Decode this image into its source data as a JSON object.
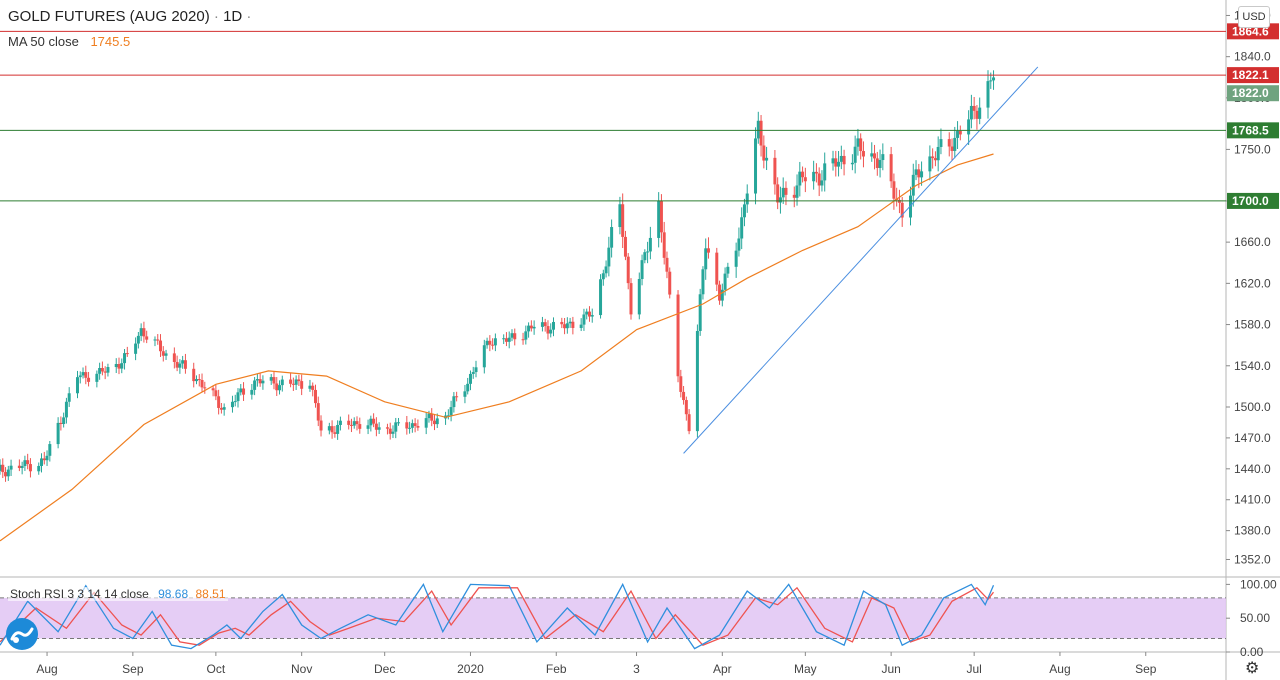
{
  "legend": {
    "symbol": "GOLD FUTURES (AUG 2020)",
    "interval": "1D",
    "ma_label": "MA 50 close",
    "ma_value": "1745.5"
  },
  "currency": "USD",
  "rsi_legend": {
    "label": "Stoch RSI 3 3 14 14 close",
    "k_value": "98.68",
    "d_value": "88.51"
  },
  "colors": {
    "up": "#26a69a",
    "down": "#ef5350",
    "ma": "#ef7e20",
    "trendline": "#4a8ee0",
    "resistance": "#d32f2f",
    "support": "#2e7d32",
    "k_line": "#2f8fdd",
    "d_line": "#ef5350",
    "rsi_band": "#e1c4f3",
    "current_price": "#6fa37f"
  },
  "chart_data": {
    "type": "candlestick",
    "title": "GOLD FUTURES (AUG 2020)",
    "interval": "1D",
    "ylim": [
      1335,
      1895
    ],
    "y_ticks": [
      "1880.0",
      "1840.0",
      "1800.0",
      "1750.0",
      "1700.0",
      "1660.0",
      "1620.0",
      "1580.0",
      "1540.0",
      "1500.0",
      "1470.0",
      "1440.0",
      "1410.0",
      "1380.0",
      "1352.0"
    ],
    "x_ticks": [
      {
        "label": "Aug",
        "date": "2019-08-01"
      },
      {
        "label": "Sep",
        "date": "2019-09-01"
      },
      {
        "label": "Oct",
        "date": "2019-10-01"
      },
      {
        "label": "Nov",
        "date": "2019-11-01"
      },
      {
        "label": "Dec",
        "date": "2019-12-01"
      },
      {
        "label": "2020",
        "date": "2020-01-01"
      },
      {
        "label": "Feb",
        "date": "2020-02-01"
      },
      {
        "label": "3",
        "date": "2020-03-01"
      },
      {
        "label": "Apr",
        "date": "2020-04-01"
      },
      {
        "label": "May",
        "date": "2020-05-01"
      },
      {
        "label": "Jun",
        "date": "2020-06-01"
      },
      {
        "label": "Jul",
        "date": "2020-07-01"
      },
      {
        "label": "Aug",
        "date": "2020-08-01"
      },
      {
        "label": "Sep",
        "date": "2020-09-01"
      }
    ],
    "price_path": [
      [
        "2019-07-15",
        1438
      ],
      [
        "2019-07-31",
        1447
      ],
      [
        "2019-08-12",
        1530
      ],
      [
        "2019-08-20",
        1532
      ],
      [
        "2019-08-30",
        1548
      ],
      [
        "2019-09-04",
        1575
      ],
      [
        "2019-09-12",
        1553
      ],
      [
        "2019-09-24",
        1528
      ],
      [
        "2019-10-01",
        1507
      ],
      [
        "2019-10-04",
        1498
      ],
      [
        "2019-10-15",
        1525
      ],
      [
        "2019-10-28",
        1522
      ],
      [
        "2019-11-04",
        1525
      ],
      [
        "2019-11-08",
        1476
      ],
      [
        "2019-11-13",
        1480
      ],
      [
        "2019-11-22",
        1485
      ],
      [
        "2019-12-02",
        1478
      ],
      [
        "2019-12-13",
        1484
      ],
      [
        "2019-12-23",
        1491
      ],
      [
        "2019-12-31",
        1525
      ],
      [
        "2020-01-08",
        1565
      ],
      [
        "2020-01-15",
        1565
      ],
      [
        "2020-01-24",
        1578
      ],
      [
        "2020-02-04",
        1578
      ],
      [
        "2020-02-14",
        1590
      ],
      [
        "2020-02-24",
        1695
      ],
      [
        "2020-02-28",
        1595
      ],
      [
        "2020-03-09",
        1698
      ],
      [
        "2020-03-16",
        1532
      ],
      [
        "2020-03-20",
        1480
      ],
      [
        "2020-03-26",
        1664
      ],
      [
        "2020-03-31",
        1605
      ],
      [
        "2020-04-08",
        1680
      ],
      [
        "2020-04-14",
        1770
      ],
      [
        "2020-04-21",
        1700
      ],
      [
        "2020-04-29",
        1720
      ],
      [
        "2020-05-06",
        1725
      ],
      [
        "2020-05-13",
        1738
      ],
      [
        "2020-05-20",
        1750
      ],
      [
        "2020-05-28",
        1740
      ],
      [
        "2020-06-05",
        1690
      ],
      [
        "2020-06-12",
        1735
      ],
      [
        "2020-06-22",
        1755
      ],
      [
        "2020-07-01",
        1785
      ],
      [
        "2020-07-08",
        1822
      ]
    ],
    "ma_path": [
      [
        "2019-07-15",
        1370
      ],
      [
        "2019-08-10",
        1420
      ],
      [
        "2019-09-05",
        1483
      ],
      [
        "2019-10-01",
        1522
      ],
      [
        "2019-10-20",
        1535
      ],
      [
        "2019-11-10",
        1530
      ],
      [
        "2019-12-01",
        1505
      ],
      [
        "2019-12-23",
        1490
      ],
      [
        "2020-01-15",
        1505
      ],
      [
        "2020-02-10",
        1535
      ],
      [
        "2020-03-01",
        1575
      ],
      [
        "2020-03-25",
        1600
      ],
      [
        "2020-04-10",
        1625
      ],
      [
        "2020-04-30",
        1652
      ],
      [
        "2020-05-20",
        1675
      ],
      [
        "2020-06-10",
        1715
      ],
      [
        "2020-06-25",
        1735
      ],
      [
        "2020-07-08",
        1745.5
      ]
    ],
    "horizontal_levels": [
      {
        "price": 1864.6,
        "label": "1864.6",
        "kind": "resistance"
      },
      {
        "price": 1822.1,
        "label": "1822.1",
        "kind": "resistance"
      },
      {
        "price": 1768.5,
        "label": "1768.5",
        "kind": "support"
      },
      {
        "price": 1700.0,
        "label": "1700.0",
        "kind": "support"
      }
    ],
    "current_price": {
      "price": 1822.0,
      "label": "1822.0"
    },
    "trendline": {
      "start": [
        "2020-03-18",
        1455
      ],
      "end": [
        "2020-07-24",
        1830
      ]
    },
    "stoch_rsi": {
      "label": "Stoch RSI 3 3 14 14 close",
      "k": 98.68,
      "d": 88.51,
      "ylim": [
        0,
        105
      ],
      "y_ticks": [
        "100.00",
        "50.00",
        "0.00"
      ],
      "bands": [
        20,
        80
      ],
      "k_path": [
        [
          "2019-07-15",
          10
        ],
        [
          "2019-07-25",
          75
        ],
        [
          "2019-08-05",
          30
        ],
        [
          "2019-08-15",
          98
        ],
        [
          "2019-08-25",
          35
        ],
        [
          "2019-09-01",
          20
        ],
        [
          "2019-09-08",
          60
        ],
        [
          "2019-09-15",
          10
        ],
        [
          "2019-09-22",
          5
        ],
        [
          "2019-09-30",
          25
        ],
        [
          "2019-10-05",
          40
        ],
        [
          "2019-10-10",
          20
        ],
        [
          "2019-10-18",
          60
        ],
        [
          "2019-10-25",
          85
        ],
        [
          "2019-11-01",
          40
        ],
        [
          "2019-11-08",
          20
        ],
        [
          "2019-11-15",
          35
        ],
        [
          "2019-11-25",
          55
        ],
        [
          "2019-12-05",
          40
        ],
        [
          "2019-12-15",
          100
        ],
        [
          "2019-12-22",
          30
        ],
        [
          "2020-01-01",
          100
        ],
        [
          "2020-01-15",
          98
        ],
        [
          "2020-01-25",
          15
        ],
        [
          "2020-02-05",
          65
        ],
        [
          "2020-02-15",
          25
        ],
        [
          "2020-02-25",
          100
        ],
        [
          "2020-03-05",
          15
        ],
        [
          "2020-03-12",
          65
        ],
        [
          "2020-03-22",
          5
        ],
        [
          "2020-03-31",
          25
        ],
        [
          "2020-04-10",
          90
        ],
        [
          "2020-04-18",
          65
        ],
        [
          "2020-04-25",
          100
        ],
        [
          "2020-05-05",
          30
        ],
        [
          "2020-05-15",
          10
        ],
        [
          "2020-05-22",
          90
        ],
        [
          "2020-05-30",
          70
        ],
        [
          "2020-06-05",
          10
        ],
        [
          "2020-06-12",
          25
        ],
        [
          "2020-06-20",
          80
        ],
        [
          "2020-06-30",
          100
        ],
        [
          "2020-07-05",
          70
        ],
        [
          "2020-07-08",
          98.68
        ]
      ],
      "d_path": [
        [
          "2019-07-15",
          15
        ],
        [
          "2019-07-28",
          65
        ],
        [
          "2019-08-08",
          35
        ],
        [
          "2019-08-18",
          88
        ],
        [
          "2019-08-28",
          40
        ],
        [
          "2019-09-04",
          25
        ],
        [
          "2019-09-11",
          55
        ],
        [
          "2019-09-18",
          15
        ],
        [
          "2019-09-25",
          10
        ],
        [
          "2019-10-02",
          28
        ],
        [
          "2019-10-08",
          35
        ],
        [
          "2019-10-13",
          25
        ],
        [
          "2019-10-21",
          55
        ],
        [
          "2019-10-28",
          75
        ],
        [
          "2019-11-04",
          45
        ],
        [
          "2019-11-11",
          25
        ],
        [
          "2019-11-18",
          35
        ],
        [
          "2019-11-28",
          50
        ],
        [
          "2019-12-08",
          45
        ],
        [
          "2019-12-18",
          90
        ],
        [
          "2019-12-25",
          40
        ],
        [
          "2020-01-04",
          95
        ],
        [
          "2020-01-18",
          95
        ],
        [
          "2020-01-28",
          20
        ],
        [
          "2020-02-08",
          55
        ],
        [
          "2020-02-18",
          30
        ],
        [
          "2020-02-28",
          90
        ],
        [
          "2020-03-08",
          20
        ],
        [
          "2020-03-15",
          55
        ],
        [
          "2020-03-25",
          10
        ],
        [
          "2020-04-03",
          25
        ],
        [
          "2020-04-13",
          80
        ],
        [
          "2020-04-21",
          70
        ],
        [
          "2020-04-28",
          95
        ],
        [
          "2020-05-08",
          35
        ],
        [
          "2020-05-18",
          15
        ],
        [
          "2020-05-25",
          80
        ],
        [
          "2020-06-02",
          65
        ],
        [
          "2020-06-08",
          15
        ],
        [
          "2020-06-15",
          25
        ],
        [
          "2020-06-23",
          75
        ],
        [
          "2020-07-02",
          95
        ],
        [
          "2020-07-06",
          78
        ],
        [
          "2020-07-08",
          88.51
        ]
      ]
    }
  }
}
